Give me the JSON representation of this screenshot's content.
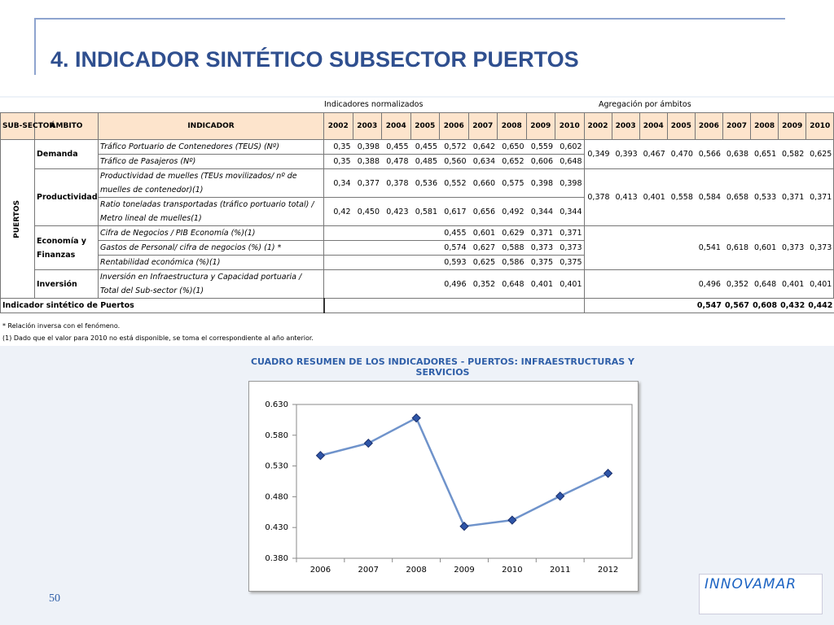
{
  "title": "4. INDICADOR SINTÉTICO SUBSECTOR PUERTOS",
  "table": {
    "group_headers": [
      "Indicadores normalizados",
      "Agregación por ámbitos"
    ],
    "headers": [
      "SUB-SECTOR",
      "ÁMBITO",
      "INDICADOR"
    ],
    "years": [
      "2002",
      "2003",
      "2004",
      "2005",
      "2006",
      "2007",
      "2008",
      "2009",
      "2010"
    ],
    "subsector": "PUERTOS",
    "ambitos": [
      {
        "name": "Demanda",
        "aggregated": [
          "0,349",
          "0,393",
          "0,467",
          "0,470",
          "0,566",
          "0,638",
          "0,651",
          "0,582",
          "0,625"
        ],
        "indicators": [
          {
            "name": "Tráfico Portuario de Contenedores (TEUS) (Nº)",
            "values": [
              "0,35",
              "0,398",
              "0,455",
              "0,455",
              "0,572",
              "0,642",
              "0,650",
              "0,559",
              "0,602"
            ]
          },
          {
            "name": "Tráfico de Pasajeros (Nº)",
            "values": [
              "0,35",
              "0,388",
              "0,478",
              "0,485",
              "0,560",
              "0,634",
              "0,652",
              "0,606",
              "0,648"
            ]
          }
        ]
      },
      {
        "name": "Productividad",
        "aggregated": [
          "0,378",
          "0,413",
          "0,401",
          "0,558",
          "0,584",
          "0,658",
          "0,533",
          "0,371",
          "0,371"
        ],
        "indicators": [
          {
            "name": "Productividad de muelles (TEUs movilizados/ nº de muelles de contenedor)(1)",
            "values": [
              "0,34",
              "0,377",
              "0,378",
              "0,536",
              "0,552",
              "0,660",
              "0,575",
              "0,398",
              "0,398"
            ]
          },
          {
            "name": "Ratio toneladas transportadas (tráfico portuario total) / Metro lineal de muelles(1)",
            "values": [
              "0,42",
              "0,450",
              "0,423",
              "0,581",
              "0,617",
              "0,656",
              "0,492",
              "0,344",
              "0,344"
            ]
          }
        ]
      },
      {
        "name": "Economía y Finanzas",
        "aggregated": [
          null,
          null,
          null,
          null,
          "0,541",
          "0,618",
          "0,601",
          "0,373",
          "0,373"
        ],
        "indicators": [
          {
            "name": "Cifra de Negocios / PIB Economía (%)(1)",
            "values": [
              null,
              null,
              null,
              null,
              "0,455",
              "0,601",
              "0,629",
              "0,371",
              "0,371"
            ]
          },
          {
            "name": "Gastos de Personal/ cifra de negocios (%) (1) *",
            "values": [
              null,
              null,
              null,
              null,
              "0,574",
              "0,627",
              "0,588",
              "0,373",
              "0,373"
            ]
          },
          {
            "name": "Rentabilidad económica (%)(1)",
            "values": [
              null,
              null,
              null,
              null,
              "0,593",
              "0,625",
              "0,586",
              "0,375",
              "0,375"
            ]
          }
        ]
      },
      {
        "name": "Inversión",
        "aggregated": [
          null,
          null,
          null,
          null,
          "0,496",
          "0,352",
          "0,648",
          "0,401",
          "0,401"
        ],
        "indicators": [
          {
            "name": "Inversión en Infraestructura y Capacidad portuaria / Total del Sub-sector (%)(1)",
            "values": [
              null,
              null,
              null,
              null,
              "0,496",
              "0,352",
              "0,648",
              "0,401",
              "0,401"
            ]
          }
        ]
      }
    ],
    "total_label": "Indicador sintético de Puertos",
    "total_values": [
      null,
      null,
      null,
      null,
      "0,547",
      "0,567",
      "0,608",
      "0,432",
      "0,442"
    ]
  },
  "notes": [
    "* Relación inversa con el fenómeno.",
    "(1) Dado que el valor para 2010 no está disponible, se toma el correspondiente al año anterior."
  ],
  "chart_data": {
    "type": "line",
    "title": "CUADRO RESUMEN DE LOS INDICADORES - PUERTOS: INFRAESTRUCTURAS Y SERVICIOS",
    "categories": [
      "2006",
      "2007",
      "2008",
      "2009",
      "2010",
      "2011",
      "2012"
    ],
    "values": [
      0.547,
      0.567,
      0.608,
      0.432,
      0.442,
      0.481,
      0.518
    ],
    "color": "#6f93cb",
    "marker_color": "#2e55a8",
    "ylim": [
      0.38,
      0.63
    ],
    "yticks": [
      {
        "value": 0.38,
        "label": "0.380"
      },
      {
        "value": 0.43,
        "label": "0.430"
      },
      {
        "value": 0.48,
        "label": "0.480"
      },
      {
        "value": 0.53,
        "label": "0.530"
      },
      {
        "value": 0.58,
        "label": "0.580"
      },
      {
        "value": 0.63,
        "label": "0.630"
      }
    ]
  },
  "page_number": "50",
  "logo": "INNOVAMAR"
}
